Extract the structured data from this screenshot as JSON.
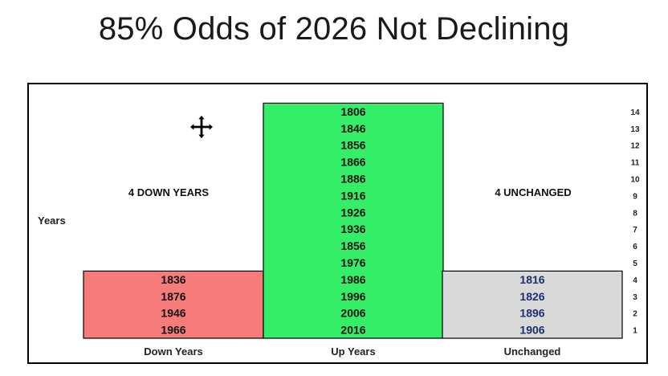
{
  "title": "85% Odds of 2026 Not Declining",
  "chart_data": {
    "type": "bar",
    "categories": [
      "Down Years",
      "Up Years",
      "Unchanged"
    ],
    "values": [
      4,
      14,
      4
    ],
    "ylabel": "Years",
    "ylim": [
      0,
      14
    ],
    "y_ticks": [
      "1",
      "2",
      "3",
      "4",
      "5",
      "6",
      "7",
      "8",
      "9",
      "10",
      "11",
      "12",
      "13",
      "14"
    ],
    "grid": false,
    "colors": [
      "#f77b7b",
      "#33ee66",
      "#d9d9d9"
    ],
    "label_colors": [
      "#111111",
      "#111111",
      "#1f2f6e"
    ],
    "bar_years": [
      [
        "1966",
        "1946",
        "1876",
        "1836"
      ],
      [
        "2016",
        "2006",
        "1996",
        "1986",
        "1976",
        "1856",
        "1936",
        "1926",
        "1916",
        "1886",
        "1866",
        "1856",
        "1846",
        "1806"
      ],
      [
        "1906",
        "1896",
        "1826",
        "1816"
      ]
    ],
    "annotations": [
      "4 DOWN YEARS",
      "4 UNCHANGED"
    ]
  },
  "icons": {
    "cursor": "move-cursor-icon"
  }
}
